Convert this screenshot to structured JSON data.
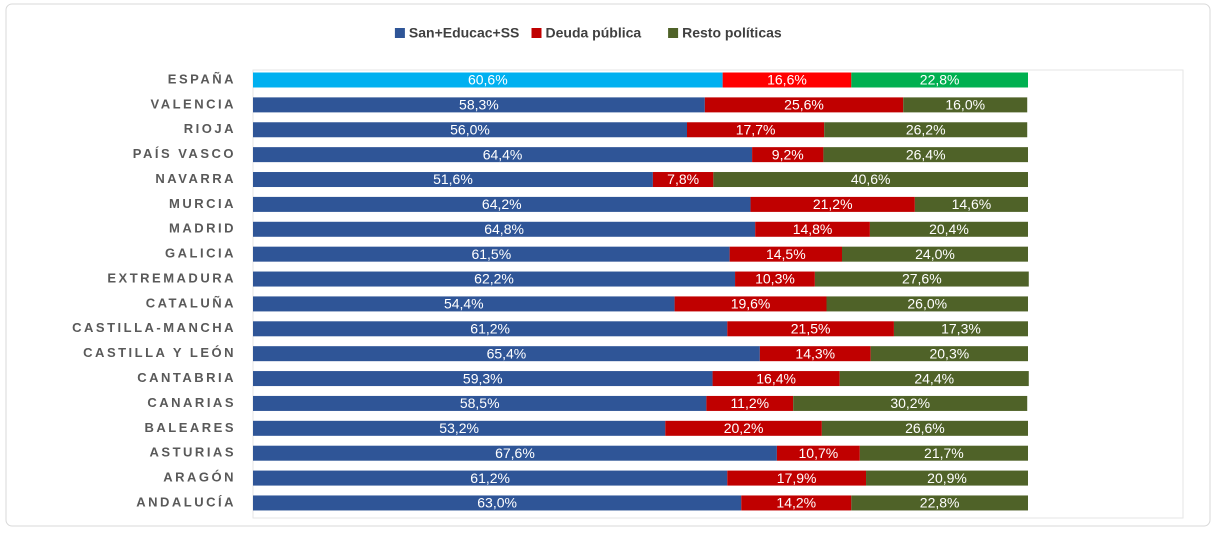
{
  "chart_data": {
    "type": "stacked_barh",
    "categories": [
      "ESPAÑA",
      "VALENCIA",
      "RIOJA",
      "PAÍS VASCO",
      "NAVARRA",
      "MURCIA",
      "MADRID",
      "GALICIA",
      "EXTREMADURA",
      "CATALUÑA",
      "CASTILLA-MANCHA",
      "CASTILLA Y LEÓN",
      "CANTABRIA",
      "CANARIAS",
      "BALEARES",
      "ASTURIAS",
      "ARAGÓN",
      "ANDALUCÍA"
    ],
    "series": [
      {
        "name": "San+Educac+SS",
        "color": "#2f5597",
        "values": [
          60.6,
          58.3,
          56.0,
          64.4,
          51.6,
          64.2,
          64.8,
          61.5,
          62.2,
          54.4,
          61.2,
          65.4,
          59.3,
          58.5,
          53.2,
          67.6,
          61.2,
          63.0
        ],
        "value_labels": [
          "60,6%",
          "58,3%",
          "56,0%",
          "64,4%",
          "51,6%",
          "64,2%",
          "64,8%",
          "61,5%",
          "62,2%",
          "54,4%",
          "61,2%",
          "65,4%",
          "59,3%",
          "58,5%",
          "53,2%",
          "67,6%",
          "61,2%",
          "63,0%"
        ]
      },
      {
        "name": "Deuda pública",
        "color": "#c00000",
        "values": [
          16.6,
          25.6,
          17.7,
          9.2,
          7.8,
          21.2,
          14.8,
          14.5,
          10.3,
          19.6,
          21.5,
          14.3,
          16.4,
          11.2,
          20.2,
          10.7,
          17.9,
          14.2
        ],
        "value_labels": [
          "16,6%",
          "25,6%",
          "17,7%",
          "9,2%",
          "7,8%",
          "21,2%",
          "14,8%",
          "14,5%",
          "10,3%",
          "19,6%",
          "21,5%",
          "14,3%",
          "16,4%",
          "11,2%",
          "20,2%",
          "10,7%",
          "17,9%",
          "14,2%"
        ]
      },
      {
        "name": "Resto políticas",
        "color": "#4f6228",
        "values": [
          22.8,
          16.0,
          26.2,
          26.4,
          40.6,
          14.6,
          20.4,
          24.0,
          27.6,
          26.0,
          17.3,
          20.3,
          24.4,
          30.2,
          26.6,
          21.7,
          20.9,
          22.8
        ],
        "value_labels": [
          "22,8%",
          "16,0%",
          "26,2%",
          "26,4%",
          "40,6%",
          "14,6%",
          "20,4%",
          "24,0%",
          "27,6%",
          "26,0%",
          "17,3%",
          "20,3%",
          "24,4%",
          "30,2%",
          "26,6%",
          "21,7%",
          "20,9%",
          "22,8%"
        ]
      }
    ],
    "highlight": {
      "index": 0,
      "colors": [
        "#00b0f0",
        "#ff0000",
        "#00b050"
      ]
    },
    "xlim": [
      0,
      120
    ],
    "legend": "top"
  }
}
